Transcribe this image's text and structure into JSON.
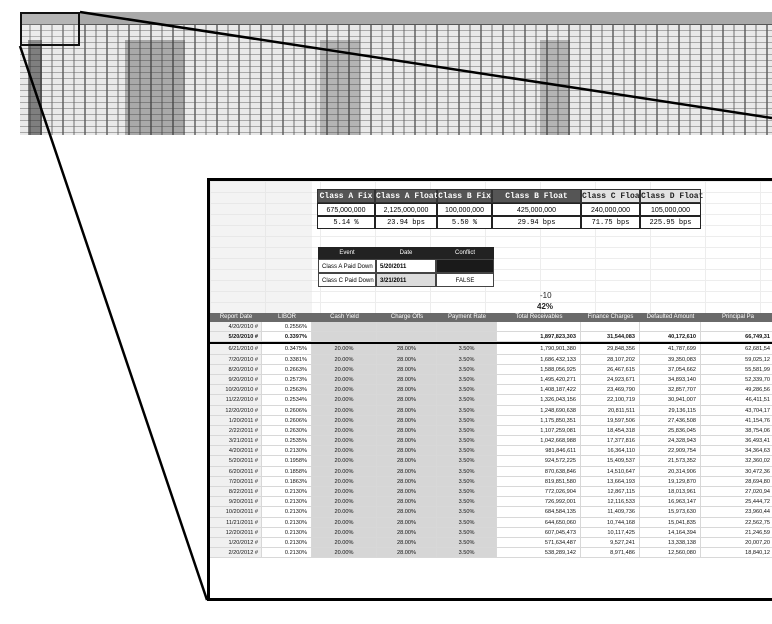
{
  "sheet": {
    "classes": [
      {
        "name": "Class A Fix",
        "amount": "675,000,000",
        "rate": "5.14 %",
        "style": "dark"
      },
      {
        "name": "Class A Float",
        "amount": "2,125,000,000",
        "rate": "23.94 bps",
        "style": "dark"
      },
      {
        "name": "Class B Fix",
        "amount": "100,000,000",
        "rate": "5.50 %",
        "style": "dark"
      },
      {
        "name": "Class B Float",
        "amount": "425,000,000",
        "rate": "29.94 bps",
        "style": "dark"
      },
      {
        "name": "Class C Float",
        "amount": "240,000,000",
        "rate": "71.75 bps",
        "style": "lite"
      },
      {
        "name": "Class D Float",
        "amount": "105,000,000",
        "rate": "225.95 bps",
        "style": "lite"
      }
    ],
    "events": {
      "headers": [
        "Event",
        "Date",
        "Conflict"
      ],
      "rows": [
        {
          "event": "Class A Paid Down",
          "date": "5/20/2011",
          "conflict": ""
        },
        {
          "event": "Class C Paid Down",
          "date": "3/21/2011",
          "conflict": "FALSE"
        }
      ]
    },
    "misc": {
      "value1": "-10",
      "value2": "42%"
    },
    "columns": [
      "Report Date",
      "LIBOR",
      "Cash Yield",
      "Charge Offs",
      "Payment Rate",
      "Total Receivables",
      "Finance Charges",
      "Defaulted Amount",
      "Principal Pa"
    ],
    "rows": [
      [
        "4/20/2010 #",
        "0.2556%",
        "",
        "",
        "",
        "",
        "",
        "",
        ""
      ],
      [
        "5/20/2010 #",
        "0.3397%",
        "",
        "",
        "",
        "1,897,823,303",
        "31,544,083",
        "40,172,610",
        "66,749,31"
      ],
      [
        "6/21/2010 #",
        "0.3475%",
        "20.00%",
        "28.00%",
        "3.50%",
        "1,790,901,380",
        "29,848,356",
        "41,787,699",
        "62,681,54"
      ],
      [
        "7/20/2010 #",
        "0.3381%",
        "20.00%",
        "28.00%",
        "3.50%",
        "1,686,432,133",
        "28,107,202",
        "39,350,083",
        "59,025,12"
      ],
      [
        "8/20/2010 #",
        "0.2663%",
        "20.00%",
        "28.00%",
        "3.50%",
        "1,588,056,925",
        "26,467,615",
        "37,054,662",
        "55,581,99"
      ],
      [
        "9/20/2010 #",
        "0.2573%",
        "20.00%",
        "28.00%",
        "3.50%",
        "1,495,420,271",
        "24,923,671",
        "34,893,140",
        "52,339,70"
      ],
      [
        "10/20/2010 #",
        "0.2563%",
        "20.00%",
        "28.00%",
        "3.50%",
        "1,408,187,422",
        "23,469,790",
        "32,857,707",
        "49,286,56"
      ],
      [
        "11/22/2010 #",
        "0.2534%",
        "20.00%",
        "28.00%",
        "3.50%",
        "1,326,043,156",
        "22,100,719",
        "30,941,007",
        "46,411,51"
      ],
      [
        "12/20/2010 #",
        "0.2606%",
        "20.00%",
        "28.00%",
        "3.50%",
        "1,248,690,638",
        "20,811,511",
        "29,136,115",
        "43,704,17"
      ],
      [
        "1/20/2011 #",
        "0.2606%",
        "20.00%",
        "28.00%",
        "3.50%",
        "1,175,850,351",
        "19,597,506",
        "27,436,508",
        "41,154,76"
      ],
      [
        "2/22/2011 #",
        "0.2630%",
        "20.00%",
        "28.00%",
        "3.50%",
        "1,107,259,081",
        "18,454,318",
        "25,836,045",
        "38,754,06"
      ],
      [
        "3/21/2011 #",
        "0.2535%",
        "20.00%",
        "28.00%",
        "3.50%",
        "1,042,668,988",
        "17,377,816",
        "24,328,943",
        "36,493,41"
      ],
      [
        "4/20/2011 #",
        "0.2130%",
        "20.00%",
        "28.00%",
        "3.50%",
        "981,846,611",
        "16,364,110",
        "22,909,754",
        "34,364,63"
      ],
      [
        "5/20/2011 #",
        "0.1958%",
        "20.00%",
        "28.00%",
        "3.50%",
        "924,572,225",
        "15,409,537",
        "21,573,352",
        "32,360,02"
      ],
      [
        "6/20/2011 #",
        "0.1858%",
        "20.00%",
        "28.00%",
        "3.50%",
        "870,638,846",
        "14,510,647",
        "20,314,906",
        "30,472,36"
      ],
      [
        "7/20/2011 #",
        "0.1863%",
        "20.00%",
        "28.00%",
        "3.50%",
        "819,851,580",
        "13,664,193",
        "19,129,870",
        "28,694,80"
      ],
      [
        "8/22/2011 #",
        "0.2130%",
        "20.00%",
        "28.00%",
        "3.50%",
        "772,026,904",
        "12,867,115",
        "18,013,961",
        "27,020,94"
      ],
      [
        "9/20/2011 #",
        "0.2130%",
        "20.00%",
        "28.00%",
        "3.50%",
        "726,992,001",
        "12,116,533",
        "16,963,147",
        "25,444,72"
      ],
      [
        "10/20/2011 #",
        "0.2130%",
        "20.00%",
        "28.00%",
        "3.50%",
        "684,584,135",
        "11,409,736",
        "15,973,630",
        "23,960,44"
      ],
      [
        "11/21/2011 #",
        "0.2130%",
        "20.00%",
        "28.00%",
        "3.50%",
        "644,650,060",
        "10,744,168",
        "15,041,835",
        "22,562,75"
      ],
      [
        "12/20/2011 #",
        "0.2130%",
        "20.00%",
        "28.00%",
        "3.50%",
        "607,045,473",
        "10,117,425",
        "14,164,394",
        "21,246,59"
      ],
      [
        "1/20/2012 #",
        "0.2130%",
        "20.00%",
        "28.00%",
        "3.50%",
        "571,634,487",
        "9,527,241",
        "13,338,138",
        "20,007,20"
      ],
      [
        "2/20/2012 #",
        "0.2130%",
        "20.00%",
        "28.00%",
        "3.50%",
        "538,289,142",
        "8,971,486",
        "12,560,080",
        "18,840,12"
      ]
    ]
  }
}
